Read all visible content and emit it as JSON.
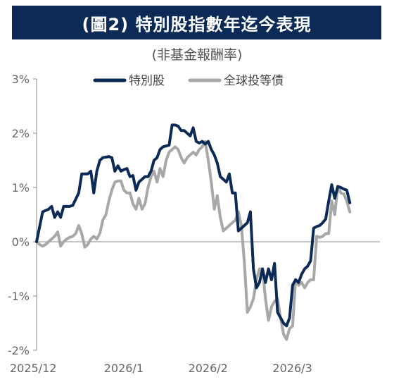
{
  "chart_data": {
    "type": "line",
    "title": "(圖2) 特別股指數年迄今表現",
    "subtitle": "(非基金報酬率)",
    "xlabel": "",
    "ylabel": "",
    "ylim": [
      -2,
      3
    ],
    "yticks": [
      3,
      2,
      1,
      0,
      -1,
      -2
    ],
    "ytick_labels": [
      "3%",
      "2%",
      "1%",
      "0%",
      "-1%",
      "-2%"
    ],
    "xtick_labels": [
      "2025/12",
      "2026/1",
      "2026/2",
      "2026/3"
    ],
    "xtick_positions": [
      0,
      28,
      56,
      84
    ],
    "x_count": 115,
    "grid": false,
    "legend": "top-center",
    "series": [
      {
        "name": "特別股",
        "color": "#0b2a56",
        "points": [
          [
            0,
            0
          ],
          [
            2,
            0.55
          ],
          [
            4,
            0.6
          ],
          [
            5,
            0.65
          ],
          [
            6,
            0.45
          ],
          [
            7,
            0.55
          ],
          [
            8,
            0.45
          ],
          [
            9,
            0.65
          ],
          [
            11,
            0.65
          ],
          [
            12,
            0.67
          ],
          [
            14,
            0.9
          ],
          [
            15,
            1.25
          ],
          [
            17,
            1.25
          ],
          [
            18,
            1.3
          ],
          [
            19,
            0.9
          ],
          [
            20,
            1.3
          ],
          [
            21,
            1.5
          ],
          [
            22,
            1.55
          ],
          [
            24,
            1.57
          ],
          [
            25,
            1.55
          ],
          [
            26,
            1.3
          ],
          [
            27,
            1.4
          ],
          [
            28,
            1.3
          ],
          [
            29,
            1.33
          ],
          [
            30,
            1.35
          ],
          [
            31,
            1.2
          ],
          [
            32,
            1.22
          ],
          [
            33,
            0.95
          ],
          [
            34,
            1.1
          ],
          [
            36,
            1.2
          ],
          [
            37,
            1.2
          ],
          [
            38,
            1.3
          ],
          [
            39,
            1.5
          ],
          [
            40,
            1.55
          ],
          [
            41,
            1.7
          ],
          [
            42,
            1.75
          ],
          [
            44,
            1.78
          ],
          [
            45,
            2.15
          ],
          [
            46,
            2.15
          ],
          [
            47,
            2.13
          ],
          [
            48,
            2.05
          ],
          [
            49,
            2.05
          ],
          [
            50,
            2.0
          ],
          [
            51,
            1.95
          ],
          [
            52,
            2.1
          ],
          [
            53,
            1.85
          ],
          [
            54,
            1.82
          ],
          [
            55,
            1.85
          ],
          [
            56,
            1.8
          ],
          [
            57,
            1.85
          ],
          [
            58,
            1.7
          ],
          [
            59,
            1.6
          ],
          [
            60,
            1.45
          ],
          [
            61,
            1.2
          ],
          [
            62,
            1.15
          ],
          [
            63,
            1.1
          ],
          [
            64,
            1.25
          ],
          [
            65,
            0.9
          ],
          [
            66,
            0.9
          ],
          [
            67,
            0.2
          ],
          [
            68,
            0.25
          ],
          [
            69,
            0.3
          ],
          [
            70,
            0.35
          ],
          [
            71,
            0.55
          ],
          [
            72,
            -0.5
          ],
          [
            73,
            -0.85
          ],
          [
            74,
            -0.75
          ],
          [
            75,
            -0.5
          ],
          [
            76,
            -0.75
          ],
          [
            77,
            -0.5
          ],
          [
            78,
            -0.7
          ],
          [
            79,
            -0.4
          ],
          [
            80,
            -1.3
          ],
          [
            81,
            -1.4
          ],
          [
            82,
            -1.5
          ],
          [
            83,
            -1.55
          ],
          [
            84,
            -1.4
          ],
          [
            85,
            -0.8
          ],
          [
            86,
            -0.7
          ],
          [
            87,
            -0.75
          ],
          [
            88,
            -0.6
          ],
          [
            89,
            -0.5
          ],
          [
            90,
            -0.45
          ],
          [
            91,
            -0.35
          ],
          [
            92,
            0.25
          ],
          [
            93,
            0.28
          ],
          [
            94,
            0.3
          ],
          [
            95,
            0.35
          ],
          [
            96,
            0.42
          ],
          [
            97,
            0.75
          ],
          [
            98,
            1.05
          ],
          [
            99,
            0.8
          ],
          [
            100,
            1.02
          ],
          [
            101,
            1.0
          ],
          [
            102,
            0.97
          ],
          [
            103,
            0.95
          ],
          [
            104,
            0.72
          ]
        ]
      },
      {
        "name": "全球投等債",
        "color": "#a8a8a8",
        "points": [
          [
            0,
            0
          ],
          [
            1,
            -0.05
          ],
          [
            2,
            -0.08
          ],
          [
            3,
            -0.05
          ],
          [
            4,
            0
          ],
          [
            5,
            0.05
          ],
          [
            6,
            0.1
          ],
          [
            7,
            0.18
          ],
          [
            8,
            -0.08
          ],
          [
            9,
            0
          ],
          [
            10,
            0.05
          ],
          [
            11,
            0.08
          ],
          [
            12,
            0.1
          ],
          [
            13,
            0.15
          ],
          [
            14,
            0.3
          ],
          [
            15,
            0.15
          ],
          [
            16,
            -0.1
          ],
          [
            17,
            -0.05
          ],
          [
            18,
            0.05
          ],
          [
            19,
            0.1
          ],
          [
            20,
            0.05
          ],
          [
            21,
            0.15
          ],
          [
            22,
            0.4
          ],
          [
            23,
            0.5
          ],
          [
            24,
            0.75
          ],
          [
            25,
            0.95
          ],
          [
            26,
            1.1
          ],
          [
            27,
            1.12
          ],
          [
            28,
            1.12
          ],
          [
            29,
            0.95
          ],
          [
            30,
            0.9
          ],
          [
            31,
            0.9
          ],
          [
            32,
            0.7
          ],
          [
            33,
            0.6
          ],
          [
            34,
            0.8
          ],
          [
            35,
            0.6
          ],
          [
            36,
            0.7
          ],
          [
            37,
            1.0
          ],
          [
            38,
            1.2
          ],
          [
            39,
            1.3
          ],
          [
            40,
            1.1
          ],
          [
            41,
            1.35
          ],
          [
            42,
            1.2
          ],
          [
            43,
            1.5
          ],
          [
            44,
            1.65
          ],
          [
            45,
            1.7
          ],
          [
            46,
            1.75
          ],
          [
            47,
            1.7
          ],
          [
            48,
            1.55
          ],
          [
            49,
            1.45
          ],
          [
            50,
            1.55
          ],
          [
            51,
            1.6
          ],
          [
            52,
            1.65
          ],
          [
            53,
            1.6
          ],
          [
            54,
            1.7
          ],
          [
            55,
            1.75
          ],
          [
            56,
            1.85
          ],
          [
            57,
            1.5
          ],
          [
            58,
            1.1
          ],
          [
            59,
            0.6
          ],
          [
            60,
            0.85
          ],
          [
            61,
            0.45
          ],
          [
            62,
            0.2
          ],
          [
            63,
            0.25
          ],
          [
            64,
            0.3
          ],
          [
            65,
            0.35
          ],
          [
            66,
            0.4
          ],
          [
            67,
            0.55
          ],
          [
            68,
            0.3
          ],
          [
            69,
            -0.4
          ],
          [
            70,
            -1.3
          ],
          [
            71,
            -1.2
          ],
          [
            72,
            -1.05
          ],
          [
            73,
            -0.7
          ],
          [
            74,
            -0.5
          ],
          [
            75,
            -0.5
          ],
          [
            76,
            -1.05
          ],
          [
            77,
            -1.45
          ],
          [
            78,
            -1.2
          ],
          [
            79,
            -1.1
          ],
          [
            80,
            -1.05
          ],
          [
            81,
            -1.4
          ],
          [
            82,
            -1.7
          ],
          [
            83,
            -1.8
          ],
          [
            84,
            -1.6
          ],
          [
            85,
            -1.55
          ],
          [
            86,
            -0.7
          ],
          [
            87,
            -0.8
          ],
          [
            88,
            -0.75
          ],
          [
            89,
            -0.85
          ],
          [
            90,
            -0.75
          ],
          [
            91,
            -0.7
          ],
          [
            92,
            -0.7
          ],
          [
            93,
            0.1
          ],
          [
            94,
            0.08
          ],
          [
            95,
            0.1
          ],
          [
            96,
            0.15
          ],
          [
            97,
            0.15
          ],
          [
            98,
            0.75
          ],
          [
            99,
            0.5
          ],
          [
            100,
            1.02
          ],
          [
            101,
            0.9
          ],
          [
            102,
            0.88
          ],
          [
            103,
            0.75
          ],
          [
            104,
            0.55
          ]
        ]
      }
    ]
  }
}
